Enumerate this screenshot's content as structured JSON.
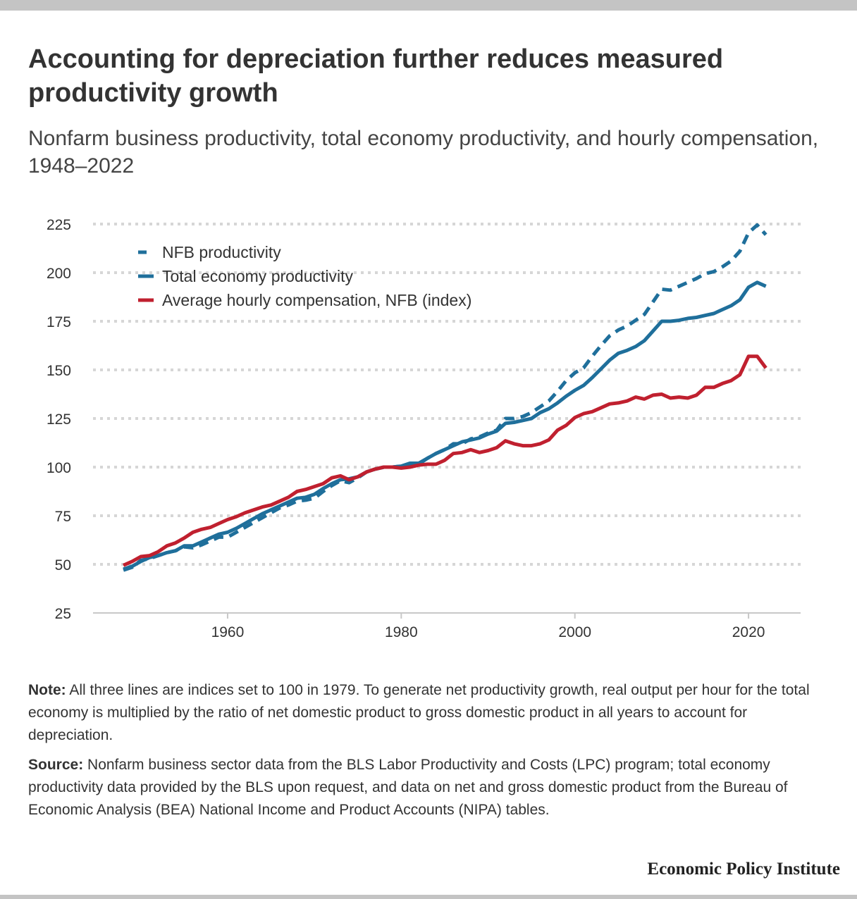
{
  "header": {
    "title": "Accounting for depreciation further reduces measured productivity growth",
    "subtitle": "Nonfarm business productivity, total economy productivity, and hourly compensation, 1948–2022"
  },
  "notes": {
    "note_label": "Note:",
    "note_text": "All three lines are indices set to 100 in 1979. To generate net productivity growth, real output per hour for the total economy is multiplied by the ratio of net domestic product to gross domestic product in all years to account for depreciation.",
    "source_label": "Source:",
    "source_text": "Nonfarm business sector data from the BLS Labor Productivity and Costs (LPC) program; total economy productivity data provided by the BLS upon request, and data on net and gross domestic product from the Bureau of Economic Analysis (BEA) National Income and Product Accounts (NIPA) tables."
  },
  "brand": "Economic Policy Institute",
  "chart_data": {
    "type": "line",
    "ylim": [
      25,
      225
    ],
    "yticks": [
      25,
      50,
      75,
      100,
      125,
      150,
      175,
      200,
      225
    ],
    "xlim": [
      1944.5,
      2026
    ],
    "xticks": [
      1960,
      1980,
      2000,
      2020
    ],
    "grid": true,
    "legend_position": "top-left",
    "x_start": 1948,
    "series": [
      {
        "name": "NFB productivity",
        "color": "#1f6f9b",
        "style": "dashed",
        "values": [
          47,
          48.5,
          52,
          53,
          54.5,
          56,
          57,
          59,
          58.5,
          60,
          62,
          64,
          64,
          66.5,
          69,
          71.5,
          74,
          76.5,
          79,
          80.5,
          82.5,
          83,
          84,
          87.5,
          90.5,
          93,
          92,
          94.5,
          97.5,
          99,
          100,
          100,
          100.5,
          101.5,
          101.5,
          104.5,
          107,
          109,
          112,
          112,
          114.5,
          115.5,
          117.5,
          119,
          125,
          125,
          126,
          128,
          131,
          134,
          139,
          144.5,
          148.5,
          151,
          157,
          162.5,
          167.5,
          170.5,
          172.5,
          175.5,
          178.5,
          185,
          191.5,
          191,
          193,
          195,
          197,
          199.5,
          200.5,
          203,
          206,
          211,
          220.5,
          224.5,
          219.5
        ]
      },
      {
        "name": "Total economy productivity",
        "color": "#1f6f9b",
        "style": "solid",
        "values": [
          47.5,
          49,
          51.5,
          53.5,
          54.5,
          56,
          57,
          59.5,
          59.5,
          61.5,
          63.5,
          65.5,
          66.5,
          68.5,
          71,
          73.5,
          76,
          78,
          80,
          82,
          84,
          84.5,
          86,
          89,
          91.5,
          93.5,
          94,
          95,
          97.5,
          99,
          100,
          100,
          100.5,
          102,
          102,
          104.5,
          107,
          109,
          111,
          113,
          114,
          115,
          117,
          118.5,
          122.5,
          123,
          124,
          125,
          128,
          130,
          133,
          136.5,
          139.5,
          142,
          146,
          150.5,
          155,
          158.5,
          160,
          162,
          165,
          170,
          175,
          175,
          175.5,
          176.5,
          177,
          178,
          179,
          181,
          183,
          186,
          192.5,
          195,
          193
        ]
      },
      {
        "name": "Average hourly compensation, NFB (index)",
        "color": "#c0202f",
        "style": "solid",
        "values": [
          49.5,
          51.5,
          54,
          54.5,
          56.5,
          59.5,
          61,
          63.5,
          66.5,
          68,
          69,
          71,
          73,
          74.5,
          76.5,
          78,
          79.5,
          80.5,
          82.5,
          84.5,
          87.5,
          88.5,
          90,
          91.5,
          94.5,
          95.5,
          93.5,
          95,
          97.5,
          99,
          100,
          100,
          99.5,
          100,
          101,
          101.5,
          101.5,
          103.5,
          107,
          107.5,
          109,
          107.5,
          108.5,
          110,
          113.5,
          112,
          111,
          111,
          112,
          114,
          119,
          121.5,
          125.5,
          127.5,
          128.5,
          130.5,
          132.5,
          133,
          134,
          136,
          135,
          137,
          137.5,
          135.5,
          136,
          135.5,
          137,
          141,
          141,
          143,
          144.5,
          147.5,
          157,
          157,
          151
        ]
      }
    ]
  }
}
